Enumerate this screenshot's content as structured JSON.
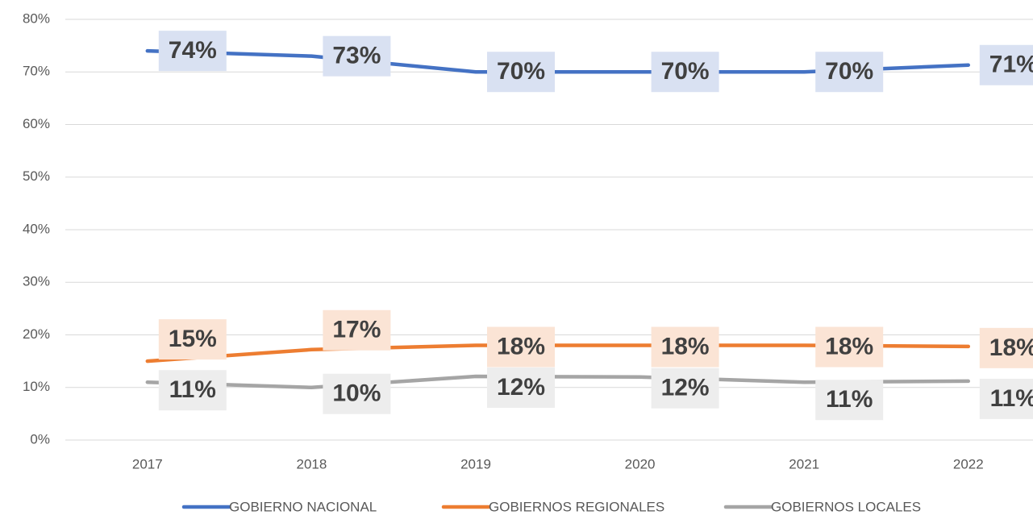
{
  "chart_data": {
    "type": "line",
    "categories": [
      "2017",
      "2018",
      "2019",
      "2020",
      "2021",
      "2022"
    ],
    "series": [
      {
        "name": "GOBIERNO NACIONAL",
        "color": "#4472c4",
        "values": [
          74,
          73,
          70,
          70,
          70,
          71.3
        ],
        "value_labels": [
          "74%",
          "73%",
          "70%",
          "70%",
          "70%",
          "71%"
        ],
        "label_fill": "#d9e1f2"
      },
      {
        "name": "GOBIERNOS REGIONALES",
        "color": "#ed7d31",
        "values": [
          15,
          17.2,
          18,
          18,
          18,
          17.8
        ],
        "value_labels": [
          "15%",
          "17%",
          "18%",
          "18%",
          "18%",
          "18%"
        ],
        "label_fill": "#fbe4d5"
      },
      {
        "name": "GOBIERNOS LOCALES",
        "color": "#a5a5a5",
        "values": [
          11,
          10,
          12.1,
          12,
          11,
          11.2
        ],
        "value_labels": [
          "11%",
          "10%",
          "12%",
          "12%",
          "11%",
          "11%"
        ],
        "label_fill": "#ededed"
      }
    ],
    "ylim": [
      0,
      80
    ],
    "yticks": [
      {
        "value": 0,
        "label": "0%"
      },
      {
        "value": 10,
        "label": "10%"
      },
      {
        "value": 20,
        "label": "20%"
      },
      {
        "value": 30,
        "label": "30%"
      },
      {
        "value": 40,
        "label": "40%"
      },
      {
        "value": 50,
        "label": "50%"
      },
      {
        "value": 60,
        "label": "60%"
      },
      {
        "value": 70,
        "label": "70%"
      },
      {
        "value": 80,
        "label": "80%"
      }
    ],
    "grid": true,
    "legend": "bottom"
  }
}
